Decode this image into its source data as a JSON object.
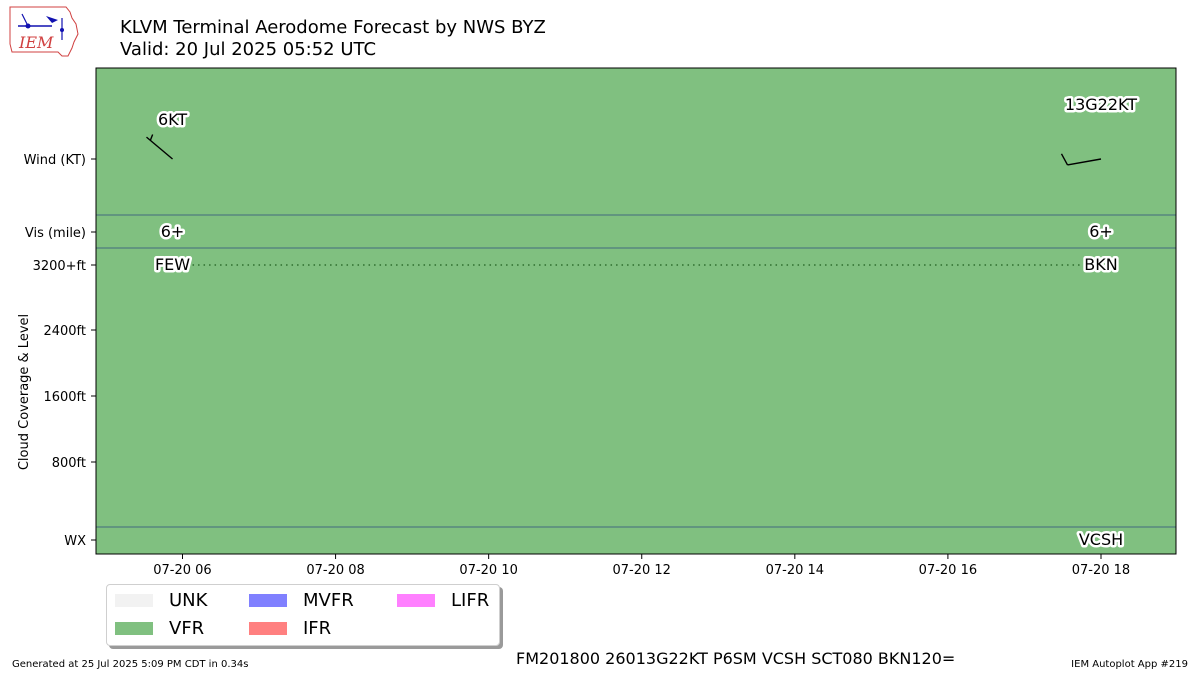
{
  "logo": {
    "text": "IEM"
  },
  "title": {
    "line1": "KLVM Terminal Aerodome Forecast by NWS BYZ",
    "line2": "Valid: 20 Jul 2025 05:52 UTC"
  },
  "colors": {
    "UNK": "#f2f2f2",
    "VFR": "#80c080",
    "MVFR": "#8080ff",
    "IFR": "#ff8080",
    "LIFR": "#ff80ff",
    "divider": "#2e4e7e",
    "cloud_line": "#2e6e2e"
  },
  "chart_data": {
    "type": "timeline",
    "x_ticks": [
      "07-20 06",
      "07-20 08",
      "07-20 10",
      "07-20 12",
      "07-20 14",
      "07-20 16",
      "07-20 18"
    ],
    "x_range_hours": [
      4.87,
      18.98
    ],
    "rows": [
      "Wind (KT)",
      "Vis (mile)",
      "Cloud Coverage & Level",
      "WX"
    ],
    "y_ticks": [
      "Wind (KT)",
      "Vis (mile)",
      "3200+ft",
      "2400ft",
      "1600ft",
      "800ft",
      "WX"
    ],
    "y_axis_label": "Cloud Coverage & Level",
    "flight_category": "VFR",
    "periods": [
      {
        "time_hour": 5.87,
        "wind_dir_deg": 310,
        "wind_label": "6KT",
        "vis_label": "6+",
        "cloud_label": "FEW",
        "wx_label": ""
      },
      {
        "time_hour": 18.0,
        "wind_dir_deg": 260,
        "wind_label": "13G22KT",
        "vis_label": "6+",
        "cloud_label": "BKN",
        "wx_label": "VCSH"
      }
    ]
  },
  "legend": [
    {
      "label": "UNK",
      "color": "#f2f2f2"
    },
    {
      "label": "VFR",
      "color": "#80c080"
    },
    {
      "label": "MVFR",
      "color": "#8080ff"
    },
    {
      "label": "IFR",
      "color": "#ff8080"
    },
    {
      "label": "LIFR",
      "color": "#ff80ff"
    }
  ],
  "footer": {
    "generated": "Generated at 25 Jul 2025 5:09 PM CDT in 0.34s",
    "taf": "FM201800 26013G22KT P6SM VCSH SCT080 BKN120=",
    "app": "IEM Autoplot App #219"
  }
}
